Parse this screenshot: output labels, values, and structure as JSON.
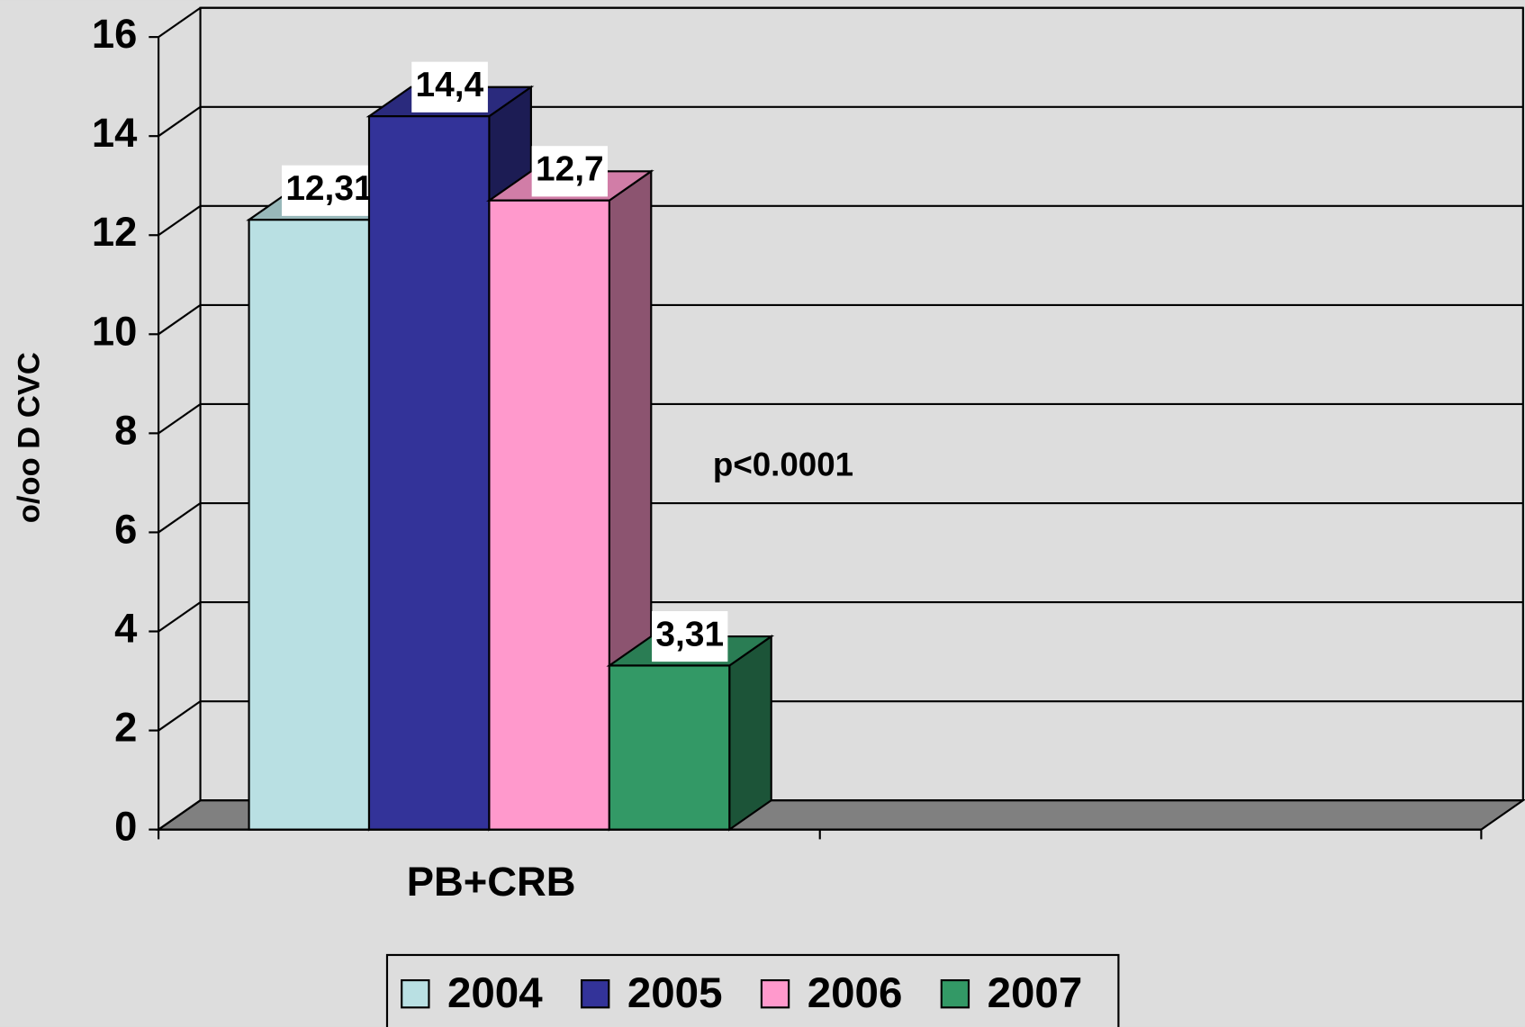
{
  "chart_data": {
    "type": "bar3d",
    "y_label": "o/oo D CVC",
    "annotation": "p<0.0001",
    "categories": [
      "PB+CRB",
      null
    ],
    "series": [
      {
        "name": "2004",
        "color": "#b9e0e3",
        "values": [
          12.31,
          null
        ],
        "value_labels": [
          "12,31",
          null
        ]
      },
      {
        "name": "2005",
        "color": "#333399",
        "values": [
          14.4,
          null
        ],
        "value_labels": [
          "14,4",
          null
        ]
      },
      {
        "name": "2006",
        "color": "#ff99cc",
        "values": [
          12.7,
          null
        ],
        "value_labels": [
          "12,7",
          null
        ]
      },
      {
        "name": "2007",
        "color": "#339966",
        "values": [
          3.31,
          null
        ],
        "value_labels": [
          "3,31",
          null
        ]
      }
    ],
    "ylim": [
      0,
      16
    ],
    "yticks": [
      0,
      2,
      4,
      6,
      8,
      10,
      12,
      14,
      16
    ],
    "grid": true
  }
}
